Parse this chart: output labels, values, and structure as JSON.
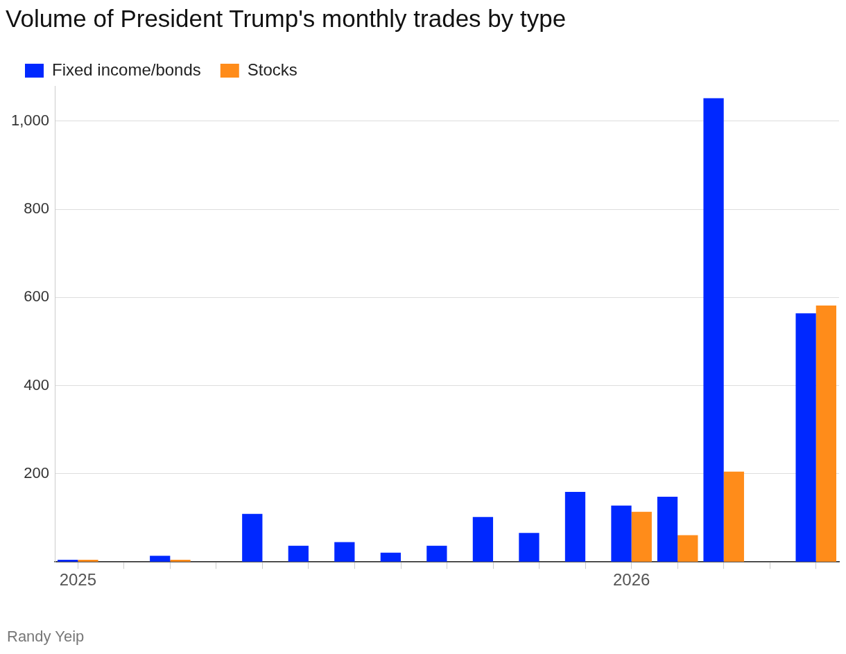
{
  "chart_data": {
    "type": "bar",
    "title": "Volume of President Trump's monthly trades by type",
    "categories": [
      "2025",
      null,
      null,
      null,
      null,
      null,
      null,
      null,
      null,
      null,
      null,
      null,
      "2026",
      null,
      null,
      null,
      null
    ],
    "series": [
      {
        "name": "Fixed income/bonds",
        "color": "#0028ff",
        "values": [
          5,
          0,
          14,
          0,
          109,
          37,
          45,
          21,
          37,
          102,
          66,
          159,
          128,
          148,
          1052,
          0,
          564
        ]
      },
      {
        "name": "Stocks",
        "color": "#ff8c1a",
        "values": [
          5,
          0,
          5,
          0,
          0,
          0,
          0,
          0,
          0,
          0,
          0,
          0,
          114,
          61,
          205,
          0,
          582
        ]
      }
    ],
    "ylim": [
      0,
      1080
    ],
    "yticks": [
      {
        "value": 0,
        "label": null
      },
      200,
      400,
      600,
      800,
      {
        "value": 1000,
        "label": "1,000"
      }
    ],
    "grid": "y",
    "legend": "top left",
    "annotations": [
      "Randy Yeip"
    ]
  }
}
